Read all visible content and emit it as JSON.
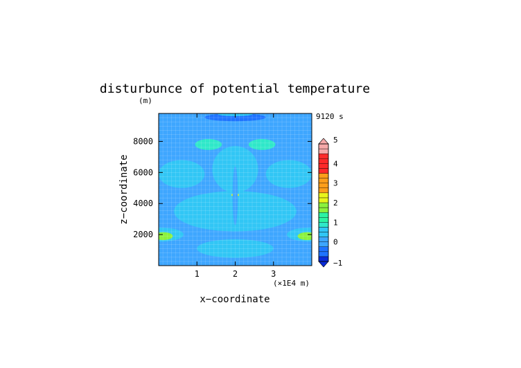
{
  "chart_data": {
    "type": "heatmap",
    "title": "disturbunce of potential temperature",
    "ylabel": "z−coordinate",
    "yunit": "(m)",
    "xlabel": "x−coordinate",
    "xunit": "(×1E4 m)",
    "time_label": "9120 s",
    "xlim": [
      0,
      4
    ],
    "ylim": [
      0,
      9800
    ],
    "x_ticks": [
      1,
      2,
      3
    ],
    "y_ticks": [
      2000,
      4000,
      6000,
      8000
    ],
    "colorbar": {
      "min": -1,
      "max": 5,
      "step": 0.25,
      "labels": [
        "5",
        "4",
        "3",
        "2",
        "1",
        "0",
        "−1"
      ],
      "label_values": [
        5,
        4,
        3,
        2,
        1,
        0,
        -1
      ]
    },
    "colors": {
      "dark_blue": "#0a2bd8",
      "blue": "#1f73ff",
      "light_blue": "#3ea6ff",
      "cyan": "#31c6f5",
      "aqua": "#2fe8c9",
      "green": "#2bf4a3",
      "lime": "#8bf23d",
      "yellow": "#e9f51a",
      "orange": "#ff9e1a",
      "red": "#ff2a2a",
      "pink": "#f6a9a9"
    },
    "regions": [
      {
        "level": -0.25,
        "shape": "band",
        "x0": 0.0,
        "x1": 4.0,
        "y0": 0,
        "y1": 9800
      },
      {
        "level": 0.0,
        "shape": "band",
        "x0": 0.0,
        "x1": 4.0,
        "y0": 1400,
        "y1": 9800
      },
      {
        "level": 0.5,
        "shape": "ellipse",
        "cx": 2.0,
        "cy": 1100,
        "rx": 1.0,
        "ry": 600
      },
      {
        "level": 0.5,
        "shape": "ellipse",
        "cx": 2.0,
        "cy": 3500,
        "rx": 1.6,
        "ry": 1300
      },
      {
        "level": 0.5,
        "shape": "ellipse",
        "cx": 0.6,
        "cy": 5900,
        "rx": 0.6,
        "ry": 900
      },
      {
        "level": 0.5,
        "shape": "ellipse",
        "cx": 3.4,
        "cy": 5900,
        "rx": 0.6,
        "ry": 900
      },
      {
        "level": 0.5,
        "shape": "ellipse",
        "cx": 2.0,
        "cy": 6200,
        "rx": 0.6,
        "ry": 1500
      },
      {
        "level": 0.5,
        "shape": "ellipse",
        "cx": 0.05,
        "cy": 2000,
        "rx": 0.6,
        "ry": 450
      },
      {
        "level": 0.5,
        "shape": "ellipse",
        "cx": 3.95,
        "cy": 2000,
        "rx": 0.6,
        "ry": 450
      },
      {
        "level": 0.75,
        "shape": "ellipse",
        "cx": 1.3,
        "cy": 7800,
        "rx": 0.35,
        "ry": 350
      },
      {
        "level": 0.75,
        "shape": "ellipse",
        "cx": 2.7,
        "cy": 7800,
        "rx": 0.35,
        "ry": 350
      },
      {
        "level": 1.5,
        "shape": "ellipse",
        "cx": 0.12,
        "cy": 1900,
        "rx": 0.25,
        "ry": 250
      },
      {
        "level": 1.5,
        "shape": "ellipse",
        "cx": 3.88,
        "cy": 1900,
        "rx": 0.25,
        "ry": 250
      },
      {
        "level": 2.0,
        "shape": "ellipse",
        "cx": 2.0,
        "cy": 4550,
        "rx": 0.1,
        "ry": 110
      },
      {
        "level": 0.0,
        "shape": "ellipse",
        "cx": 2.0,
        "cy": 4500,
        "rx": 0.07,
        "ry": 1900
      },
      {
        "level": -0.5,
        "shape": "ellipse",
        "cx": 2.0,
        "cy": 9550,
        "rx": 0.8,
        "ry": 250
      },
      {
        "level": 0.5,
        "shape": "ellipse",
        "cx": 2.0,
        "cy": 9750,
        "rx": 0.45,
        "ry": 120
      }
    ]
  }
}
